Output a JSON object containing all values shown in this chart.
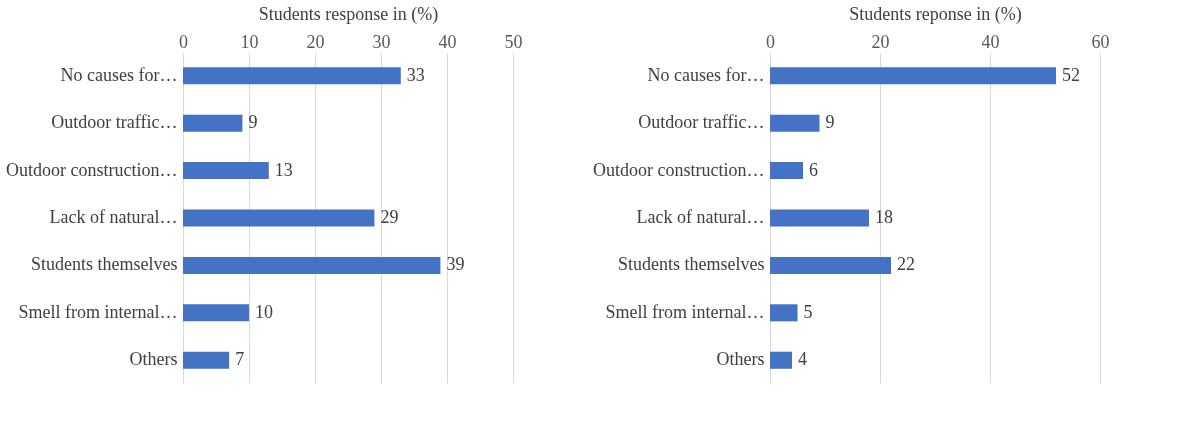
{
  "chart_data": [
    {
      "type": "bar",
      "orientation": "horizontal",
      "xlabel": "Students response in (%)",
      "categories": [
        "No causes for…",
        "Outdoor traffic…",
        "Outdoor construction…",
        "Lack of natural…",
        "Students themselves",
        "Smell from internal…",
        "Others"
      ],
      "values": [
        33,
        9,
        13,
        29,
        39,
        10,
        7
      ],
      "color": "#4472c4",
      "xlim": [
        0,
        50
      ],
      "xticks": [
        0,
        10,
        20,
        30,
        40,
        50
      ],
      "grid": "x",
      "data_labels": true
    },
    {
      "type": "bar",
      "orientation": "horizontal",
      "xlabel": "Students reponse in (%)",
      "categories": [
        "No causes for…",
        "Outdoor traffic…",
        "Outdoor construction…",
        "Lack of natural…",
        "Students themselves",
        "Smell from internal…",
        "Others"
      ],
      "values": [
        52,
        9,
        6,
        18,
        22,
        5,
        4
      ],
      "color": "#4472c4",
      "xlim": [
        0,
        60
      ],
      "xticks": [
        0,
        20,
        40,
        60
      ],
      "grid": "x",
      "data_labels": true
    }
  ]
}
